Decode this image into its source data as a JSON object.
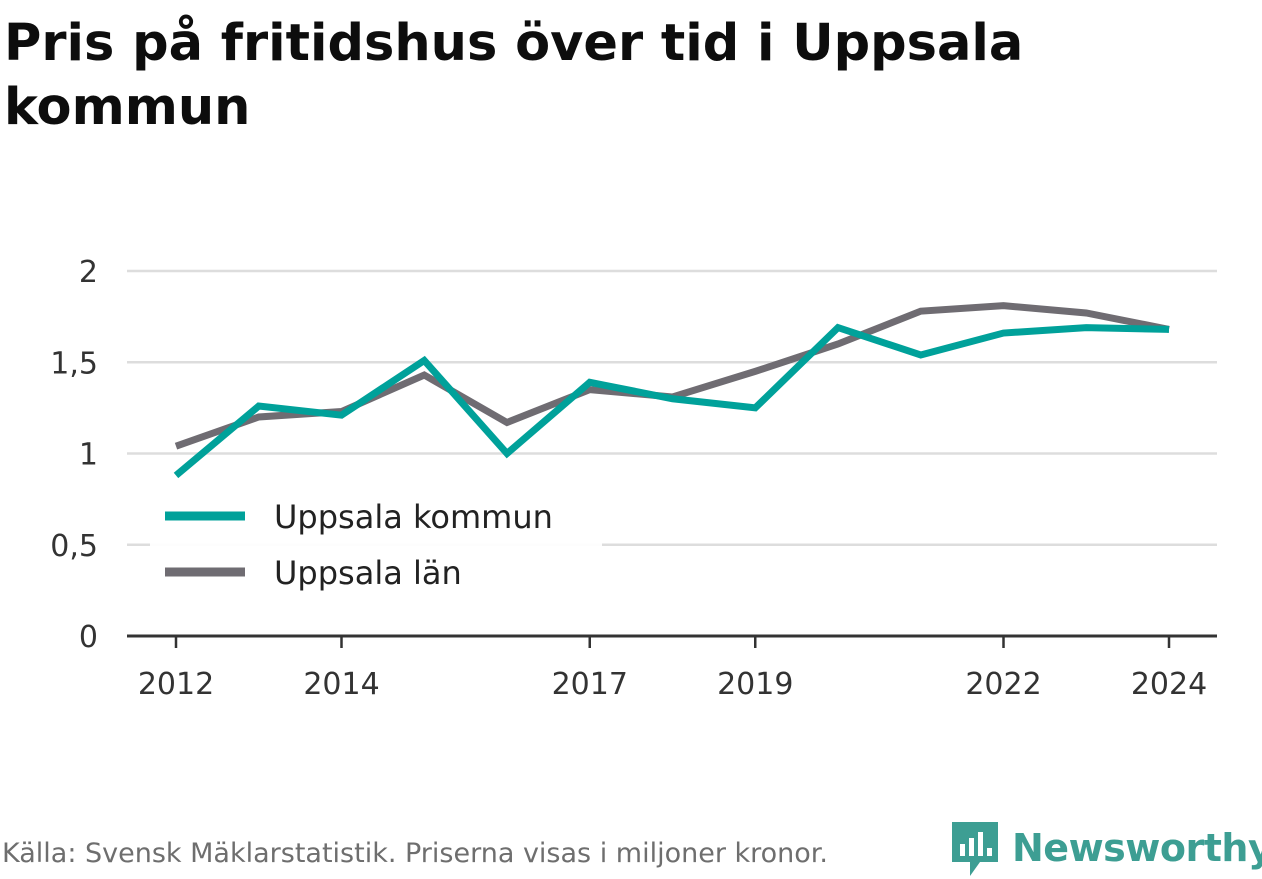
{
  "title": "Pris på fritidshus över tid i Uppsala kommun",
  "footer": {
    "source": "Källa: Svensk Mäklarstatistik. Priserna visas i miljoner kronor.",
    "brand": "Newsworthy"
  },
  "colors": {
    "kommun": "#00a19a",
    "lan": "#6f6c72",
    "grid": "#dddddd",
    "axis": "#333333",
    "brand": "#3d9e93"
  },
  "chart_data": {
    "type": "line",
    "x": [
      2012,
      2013,
      2014,
      2015,
      2016,
      2017,
      2018,
      2019,
      2020,
      2021,
      2022,
      2023,
      2024
    ],
    "x_tick_labels": [
      "2012",
      "2014",
      "2017",
      "2019",
      "2022",
      "2024"
    ],
    "x_tick_values": [
      2012,
      2014,
      2017,
      2019,
      2022,
      2024
    ],
    "y_tick_labels": [
      "0",
      "0,5",
      "1",
      "1,5",
      "2"
    ],
    "y_tick_values": [
      0,
      0.5,
      1,
      1.5,
      2
    ],
    "ylim": [
      0,
      2
    ],
    "xlim": [
      2012,
      2024
    ],
    "grid": true,
    "legend_position": "bottom-left",
    "series": [
      {
        "name": "Uppsala kommun",
        "color_key": "kommun",
        "values": [
          0.88,
          1.26,
          1.21,
          1.51,
          1.0,
          1.39,
          1.3,
          1.25,
          1.69,
          1.54,
          1.66,
          1.69,
          1.68
        ]
      },
      {
        "name": "Uppsala län",
        "color_key": "lan",
        "values": [
          1.04,
          1.2,
          1.23,
          1.43,
          1.17,
          1.35,
          1.31,
          1.45,
          1.6,
          1.78,
          1.81,
          1.77,
          1.68
        ]
      }
    ]
  }
}
